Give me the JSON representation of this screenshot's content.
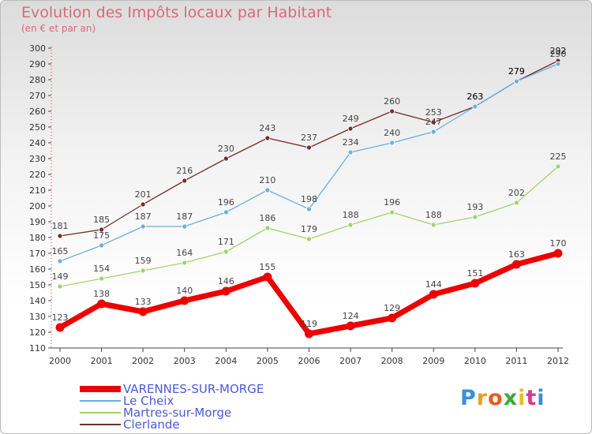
{
  "title": "Evolution des Impôts locaux par Habitant",
  "subtitle": "(en € et par an)",
  "brand": {
    "text": "Proxiti",
    "letter_colors": [
      "#3a8fd8",
      "#e8a020",
      "#e85a20",
      "#3aa838",
      "#e8c020",
      "#d83a8a",
      "#3a8fd8"
    ]
  },
  "chart_data": {
    "type": "line",
    "x": [
      "2000",
      "2001",
      "2002",
      "2003",
      "2004",
      "2005",
      "2006",
      "2007",
      "2008",
      "2009",
      "2010",
      "2011",
      "2012"
    ],
    "ylim": [
      110,
      300
    ],
    "yticks": [
      110,
      120,
      130,
      140,
      150,
      160,
      170,
      180,
      190,
      200,
      210,
      220,
      230,
      240,
      250,
      260,
      270,
      280,
      290,
      300
    ],
    "grid": false,
    "legend_position": "bottom-left",
    "series": [
      {
        "name": "VARENNES-SUR-MORGE",
        "color": "#ee0000",
        "values": [
          123,
          138,
          133,
          140,
          146,
          155,
          119,
          124,
          129,
          144,
          151,
          163,
          170
        ],
        "labels": [
          "123",
          "138",
          "133",
          "140",
          "146",
          "155",
          "119",
          "124",
          "129",
          "144",
          "151",
          "163",
          "170"
        ]
      },
      {
        "name": "Le Cheix",
        "color": "#6aaee0",
        "values": [
          165,
          175,
          187,
          187,
          196,
          210,
          198,
          234,
          240,
          247,
          263,
          279,
          290
        ],
        "labels": [
          "165",
          "175",
          "187",
          "187",
          "196",
          "210",
          "198",
          "234",
          "240",
          "247",
          "263",
          "279",
          "290"
        ]
      },
      {
        "name": "Martres-sur-Morge",
        "color": "#9ed46a",
        "values": [
          149,
          154,
          159,
          164,
          171,
          186,
          179,
          188,
          196,
          188,
          193,
          202,
          225
        ],
        "labels": [
          "149",
          "154",
          "159",
          "164",
          "171",
          "186",
          "179",
          "188",
          "196",
          "188",
          "193",
          "202",
          "225"
        ]
      },
      {
        "name": "Clerlande",
        "color": "#7a2a2a",
        "values": [
          181,
          185,
          201,
          216,
          230,
          243,
          237,
          249,
          260,
          253,
          263,
          279,
          292
        ],
        "labels": [
          "181",
          "185",
          "201",
          "216",
          "230",
          "243",
          "237",
          "249",
          "260",
          "253",
          "263",
          "279",
          "292"
        ]
      }
    ]
  }
}
